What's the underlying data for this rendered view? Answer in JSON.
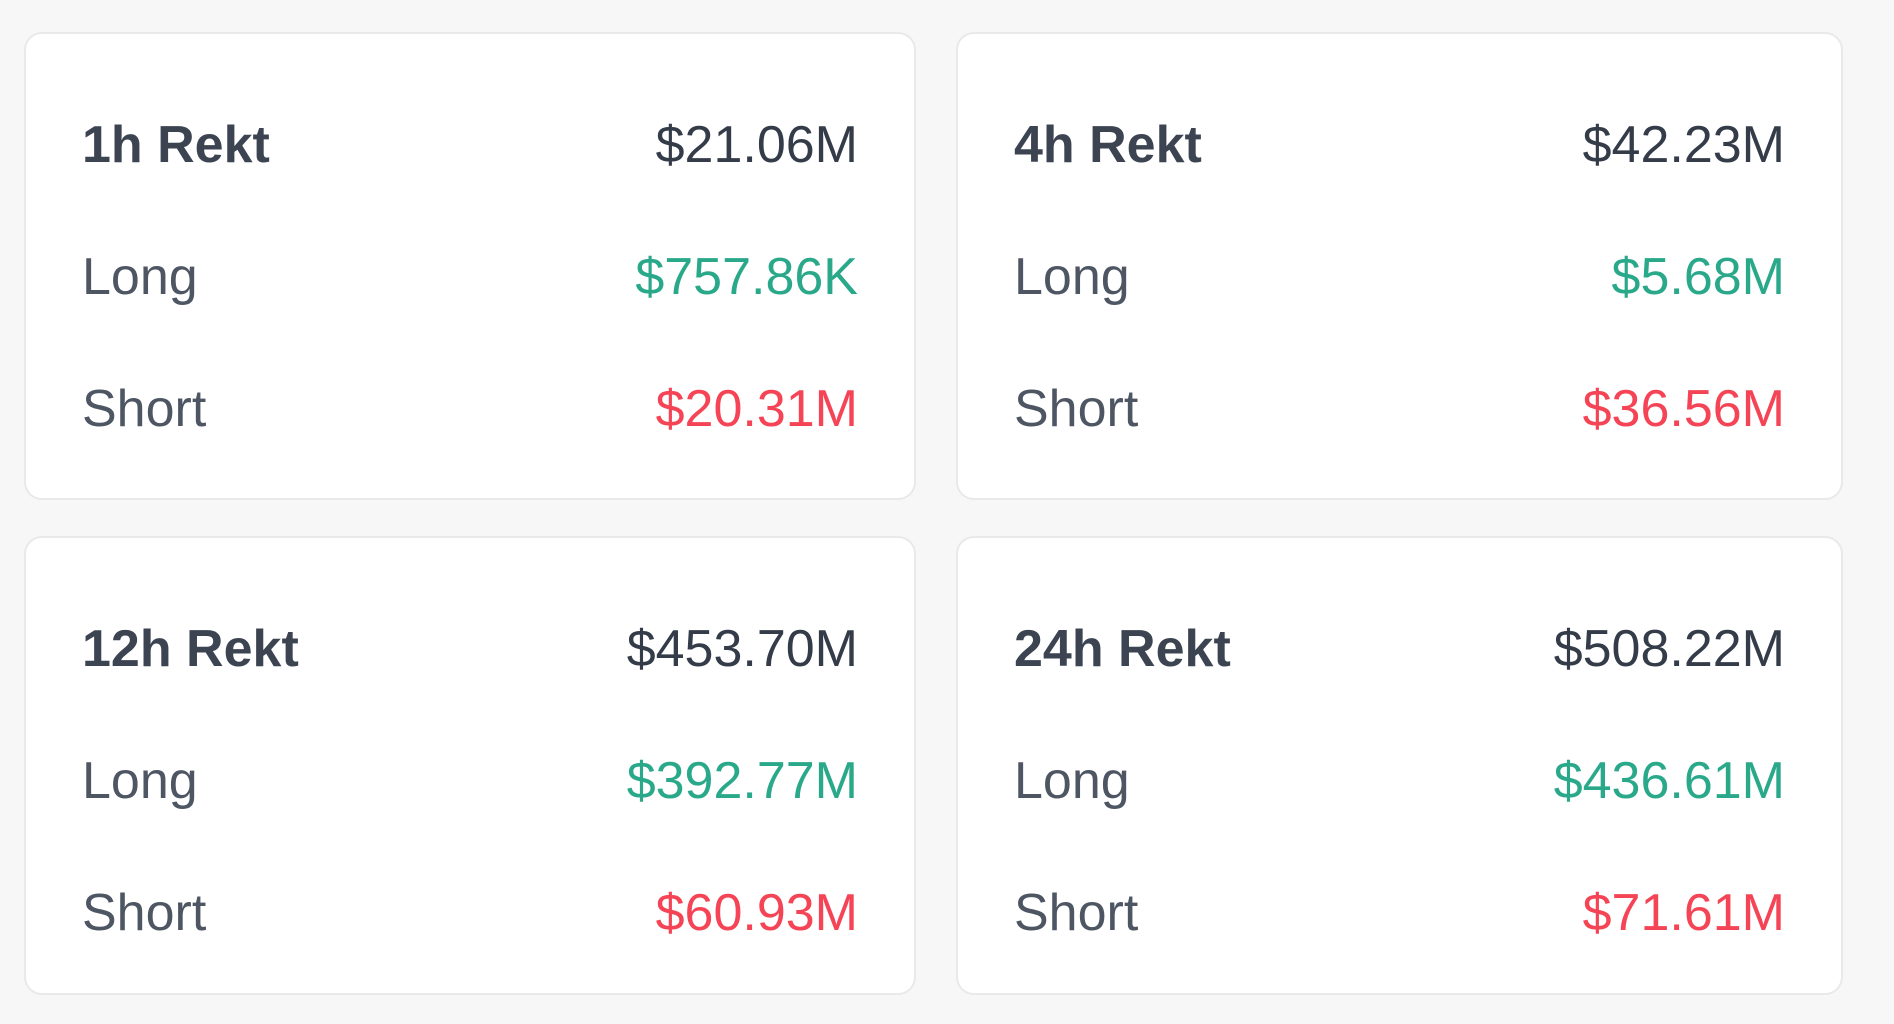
{
  "colors": {
    "page_bg": "#f7f7f8",
    "card_bg": "#ffffff",
    "card_border": "#e9e9ec",
    "title": "#3c4452",
    "total": "#353c49",
    "label": "#4e5663",
    "long": "#2aa88a",
    "short": "#f44455"
  },
  "cards": [
    {
      "title": "1h Rekt",
      "total": "$21.06M",
      "rows": [
        {
          "label": "Long",
          "value": "$757.86K"
        },
        {
          "label": "Short",
          "value": "$20.31M"
        }
      ]
    },
    {
      "title": "4h Rekt",
      "total": "$42.23M",
      "rows": [
        {
          "label": "Long",
          "value": "$5.68M"
        },
        {
          "label": "Short",
          "value": "$36.56M"
        }
      ]
    },
    {
      "title": "12h Rekt",
      "total": "$453.70M",
      "rows": [
        {
          "label": "Long",
          "value": "$392.77M"
        },
        {
          "label": "Short",
          "value": "$60.93M"
        }
      ]
    },
    {
      "title": "24h Rekt",
      "total": "$508.22M",
      "rows": [
        {
          "label": "Long",
          "value": "$436.61M"
        },
        {
          "label": "Short",
          "value": "$71.61M"
        }
      ]
    }
  ]
}
